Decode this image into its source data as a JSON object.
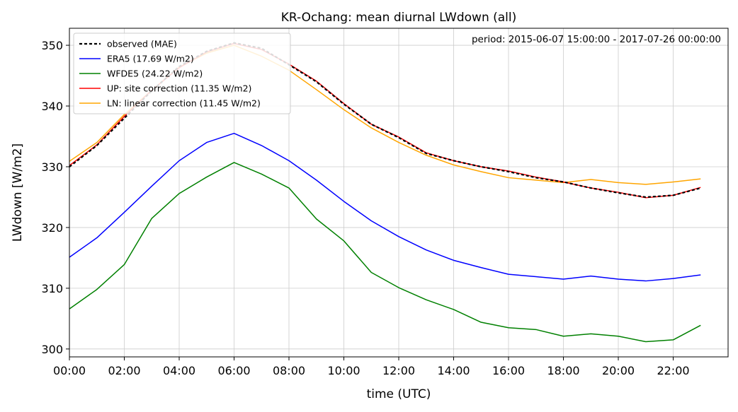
{
  "chart_data": {
    "type": "line",
    "title": "KR-Ochang: mean diurnal LWdown (all)",
    "xlabel": "time (UTC)",
    "ylabel": "LWdown [W/m2]",
    "annotation": "period: 2015-06-07 15:00:00 - 2017-07-26 00:00:00",
    "xlim": [
      0,
      24
    ],
    "ylim": [
      298.7,
      352.8
    ],
    "grid": true,
    "legend_position": "top-left",
    "x_ticks": [
      0,
      2,
      4,
      6,
      8,
      10,
      12,
      14,
      16,
      18,
      20,
      22
    ],
    "x_tick_labels": [
      "00:00",
      "02:00",
      "04:00",
      "06:00",
      "08:00",
      "10:00",
      "12:00",
      "14:00",
      "16:00",
      "18:00",
      "20:00",
      "22:00"
    ],
    "y_ticks": [
      300,
      310,
      320,
      330,
      340,
      350
    ],
    "y_tick_labels": [
      "300",
      "310",
      "320",
      "330",
      "340",
      "350"
    ],
    "x": [
      0,
      1,
      2,
      3,
      4,
      5,
      6,
      7,
      8,
      9,
      10,
      11,
      12,
      13,
      14,
      15,
      16,
      17,
      18,
      19,
      20,
      21,
      22,
      23
    ],
    "series": [
      {
        "name": "observed (MAE)",
        "color": "#000000",
        "dashed": true,
        "values": [
          330.0,
          333.5,
          338.0,
          342.5,
          346.5,
          349.0,
          350.4,
          349.5,
          346.8,
          344.0,
          340.3,
          337.0,
          334.8,
          332.2,
          331.0,
          330.0,
          329.2,
          328.2,
          327.5,
          326.5,
          325.7,
          325.0,
          325.3,
          326.5
        ]
      },
      {
        "name": "ERA5 (17.69 W/m2)",
        "color": "#0000ff",
        "dashed": false,
        "values": [
          315.1,
          318.3,
          322.5,
          326.8,
          331.0,
          334.0,
          335.5,
          333.5,
          331.0,
          327.8,
          324.3,
          321.1,
          318.5,
          316.3,
          314.6,
          313.4,
          312.3,
          311.9,
          311.5,
          312.0,
          311.5,
          311.2,
          311.6,
          312.2
        ]
      },
      {
        "name": "WFDE5 (24.22 W/m2)",
        "color": "#008000",
        "dashed": false,
        "values": [
          306.6,
          309.8,
          313.9,
          321.5,
          325.6,
          328.3,
          330.7,
          328.8,
          326.5,
          321.4,
          317.8,
          312.6,
          310.1,
          308.1,
          306.5,
          304.4,
          303.5,
          303.2,
          302.1,
          302.5,
          302.1,
          301.2,
          301.5,
          303.9
        ]
      },
      {
        "name": "UP: site correction (11.35 W/m2)",
        "color": "#ff0000",
        "dashed": false,
        "values": [
          330.2,
          333.6,
          338.3,
          342.6,
          346.3,
          348.9,
          350.3,
          349.3,
          346.9,
          344.1,
          340.4,
          337.0,
          334.9,
          332.3,
          331.0,
          330.0,
          329.3,
          328.3,
          327.5,
          326.5,
          325.8,
          324.9,
          325.3,
          326.6
        ]
      },
      {
        "name": "LN: linear correction (11.45 W/m2)",
        "color": "#ffa500",
        "dashed": false,
        "values": [
          330.9,
          334.0,
          338.6,
          342.6,
          346.4,
          348.7,
          350.0,
          348.2,
          345.9,
          342.7,
          339.4,
          336.4,
          334.0,
          331.9,
          330.3,
          329.2,
          328.2,
          327.8,
          327.4,
          327.9,
          327.4,
          327.1,
          327.5,
          328.0
        ]
      }
    ]
  }
}
